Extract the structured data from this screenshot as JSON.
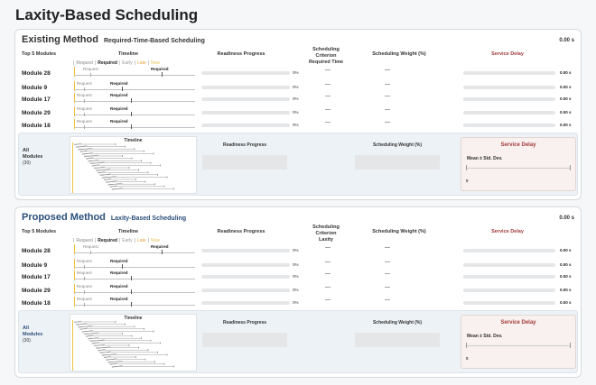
{
  "page_title": "Laxity-Based Scheduling",
  "legend": {
    "request": "Request",
    "required": "Required",
    "early": "Early",
    "late": "Late",
    "now": "Now",
    "sep": "|"
  },
  "cols": {
    "top5": "Top 5 Modules",
    "timeline": "Timeline",
    "readiness": "Readiness Progress",
    "weight": "Scheduling Weight (%)",
    "delay": "Service Delay"
  },
  "panels": [
    {
      "method": "Existing Method",
      "subtitle": "Required-Time-Based Scheduling",
      "timer": "0.00 s",
      "criterion_head": "Scheduling Criterion",
      "criterion": "Required Time",
      "rows": [
        {
          "name": "Module 28",
          "pct": "0%",
          "crit": "—",
          "weight": "—",
          "delay": "0.00 s",
          "req_label": "Request",
          "reqd_label": "Required"
        },
        {
          "name": "Module 9",
          "pct": "0%",
          "crit": "—",
          "weight": "—",
          "delay": "0.00 s",
          "req_label": "Request",
          "reqd_label": "Required"
        },
        {
          "name": "Module 17",
          "pct": "0%",
          "crit": "—",
          "weight": "—",
          "delay": "0.00 s",
          "req_label": "Request",
          "reqd_label": "Required"
        },
        {
          "name": "Module 29",
          "pct": "0%",
          "crit": "—",
          "weight": "—",
          "delay": "0.00 s",
          "req_label": "Request",
          "reqd_label": "Required"
        },
        {
          "name": "Module 18",
          "pct": "0%",
          "crit": "—",
          "weight": "—",
          "delay": "0.00 s",
          "req_label": "Request",
          "reqd_label": "Required"
        }
      ],
      "summary": {
        "all": "All",
        "modules": "Modules",
        "count": "(30)",
        "timeline": "Timeline",
        "readiness": "Readiness Progress",
        "weight": "Scheduling Weight (%)",
        "delay": "Service Delay",
        "mean": "Mean ± Std. Dev.",
        "zero": "0"
      }
    },
    {
      "method": "Proposed Method",
      "subtitle": "Laxity-Based Scheduling",
      "timer": "0.00 s",
      "criterion_head": "Scheduling Criterion",
      "criterion": "Laxity",
      "rows": [
        {
          "name": "Module 28",
          "pct": "0%",
          "crit": "—",
          "weight": "—",
          "delay": "0.00 s",
          "req_label": "Request",
          "reqd_label": "Required"
        },
        {
          "name": "Module 9",
          "pct": "0%",
          "crit": "—",
          "weight": "—",
          "delay": "0.00 s",
          "req_label": "Request",
          "reqd_label": "Required"
        },
        {
          "name": "Module 17",
          "pct": "0%",
          "crit": "—",
          "weight": "—",
          "delay": "0.00 s",
          "req_label": "Request",
          "reqd_label": "Required"
        },
        {
          "name": "Module 29",
          "pct": "0%",
          "crit": "—",
          "weight": "—",
          "delay": "0.00 s",
          "req_label": "Request",
          "reqd_label": "Required"
        },
        {
          "name": "Module 18",
          "pct": "0%",
          "crit": "—",
          "weight": "—",
          "delay": "0.00 s",
          "req_label": "Request",
          "reqd_label": "Required"
        }
      ],
      "summary": {
        "all": "All",
        "modules": "Modules",
        "count": "(30)",
        "timeline": "Timeline",
        "readiness": "Readiness Progress",
        "weight": "Scheduling Weight (%)",
        "delay": "Service Delay",
        "mean": "Mean ± Std. Dev.",
        "zero": "0"
      }
    }
  ],
  "colors": {
    "now": "#f0c040",
    "late": "#e3a23c",
    "delay_title": "#a33a3a",
    "proposed_accent": "#2a4f7c"
  }
}
